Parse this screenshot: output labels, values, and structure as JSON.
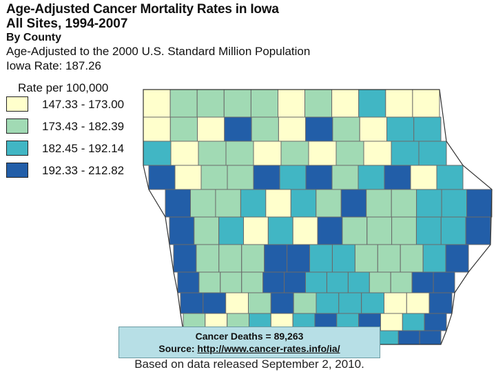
{
  "title": {
    "line1": "Age-Adjusted Cancer Mortality Rates in Iowa",
    "line2": "All Sites, 1994-2007",
    "line3": "By County",
    "line4": "Age-Adjusted to the 2000 U.S. Standard Million Population",
    "line5": "Iowa Rate: 187.26"
  },
  "legend": {
    "title": "Rate per 100,000",
    "items": [
      {
        "label": "147.33 - 173.00",
        "color": "#ffffcc"
      },
      {
        "label": "173.43 - 182.39",
        "color": "#a1dab4"
      },
      {
        "label": "182.45 - 192.14",
        "color": "#41b6c4"
      },
      {
        "label": "192.33 - 212.82",
        "color": "#225ea8"
      }
    ]
  },
  "map_grid": [
    [
      0,
      1,
      1,
      1,
      1,
      0,
      1,
      0,
      2,
      0,
      0
    ],
    [
      0,
      1,
      0,
      3,
      1,
      0,
      3,
      1,
      0,
      2,
      2
    ],
    [
      2,
      0,
      1,
      1,
      0,
      1,
      0,
      1,
      0,
      2,
      2
    ],
    [
      3,
      0,
      1,
      1,
      3,
      2,
      3,
      1,
      2,
      3,
      0,
      2
    ],
    [
      3,
      1,
      1,
      2,
      0,
      2,
      1,
      3,
      1,
      1,
      2,
      2,
      3
    ],
    [
      3,
      1,
      2,
      0,
      2,
      0,
      3,
      1,
      1,
      1,
      2,
      2,
      3
    ],
    [
      3,
      1,
      1,
      1,
      3,
      3,
      2,
      2,
      1,
      1,
      1,
      2,
      3
    ],
    [
      3,
      1,
      1,
      1,
      3,
      3,
      2,
      2,
      2,
      1,
      1,
      3,
      3
    ],
    [
      3,
      3,
      0,
      1,
      3,
      1,
      2,
      2,
      2,
      0,
      0,
      3
    ],
    [
      1,
      0,
      1,
      2,
      0,
      2,
      3,
      2,
      3,
      0,
      2,
      3
    ],
    [
      3,
      2,
      0,
      1,
      1,
      2,
      3,
      1,
      0,
      2,
      3,
      3
    ]
  ],
  "info": {
    "deaths": "Cancer Deaths = 89,263",
    "source_prefix": "Source:",
    "source_url": "http://www.cancer-rates.info/ia/",
    "released": "Based on data released September 2, 2010."
  }
}
